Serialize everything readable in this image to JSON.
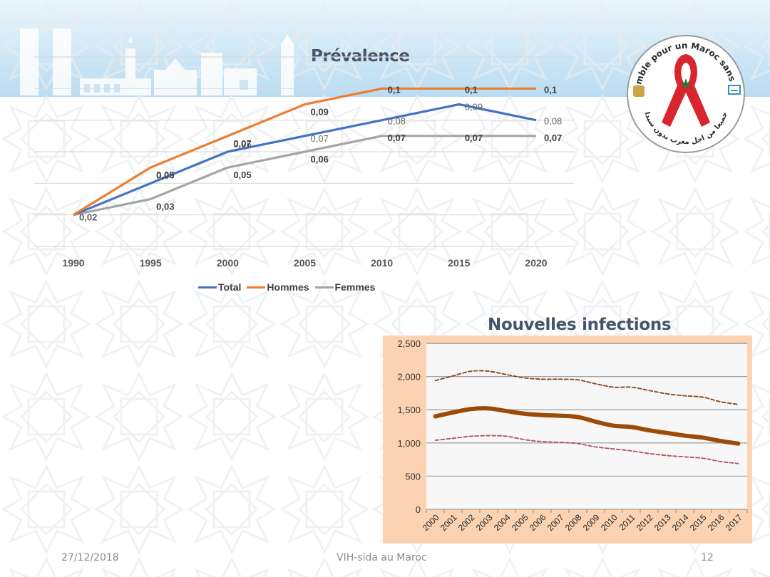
{
  "slide": {
    "footer": {
      "date": "27/12/2018",
      "title": "VIH-sida au Maroc",
      "page": "12"
    },
    "logo": {
      "top_text": "Ensemble pour un Maroc sans SIDA",
      "bottom_text": "جميعا من اجل مغرب بدون سيدا"
    }
  },
  "colors": {
    "total": "#4472c4",
    "hommes": "#ed7d31",
    "femmes": "#a5a5a5",
    "ni_central": "#9c4a06",
    "ni_upper": "#8b4513",
    "ni_lower": "#b5505a",
    "ni_frame": "#fbd3b3",
    "title": "#44546a"
  },
  "chart_data": [
    {
      "type": "line",
      "title": "Prévalence",
      "xlabel": "",
      "ylabel": "",
      "categories": [
        "1990",
        "1995",
        "2000",
        "2005",
        "2010",
        "2015",
        "2020"
      ],
      "ylim": [
        0,
        0.12
      ],
      "grid": true,
      "legend": "bottom",
      "legend_entries": [
        "Total",
        "Hommes",
        "Femmes"
      ],
      "series": [
        {
          "name": "Total",
          "values": [
            0.02,
            0.04,
            0.06,
            0.07,
            0.08,
            0.09,
            0.08
          ],
          "labels": [
            "0,02",
            "0,04",
            "0,06",
            "0,07",
            "0,08",
            "0,09",
            "0,08"
          ]
        },
        {
          "name": "Hommes",
          "values": [
            0.02,
            0.05,
            0.07,
            0.09,
            0.1,
            0.1,
            0.1
          ],
          "labels": [
            "",
            "0,05",
            "0,07",
            "0,09",
            "0,1",
            "0,1",
            "0,1"
          ]
        },
        {
          "name": "Femmes",
          "values": [
            0.02,
            0.03,
            0.05,
            0.06,
            0.07,
            0.07,
            0.07
          ],
          "labels": [
            "",
            "0,03",
            "0,05",
            "0,06",
            "0,07",
            "0,07",
            "0,07"
          ]
        }
      ]
    },
    {
      "type": "line",
      "title": "Nouvelles infections",
      "xlabel": "",
      "ylabel": "",
      "categories": [
        "2000",
        "2001",
        "2002",
        "2003",
        "2004",
        "2005",
        "2006",
        "2007",
        "2008",
        "2009",
        "2010",
        "2011",
        "2012",
        "2013",
        "2014",
        "2015",
        "2016",
        "2017"
      ],
      "ylim": [
        0,
        2500
      ],
      "yticks": [
        0,
        500,
        1000,
        1500,
        2000,
        2500
      ],
      "ytick_labels": [
        "0",
        "500",
        "1,000",
        "1,500",
        "2,000",
        "2,500"
      ],
      "grid": true,
      "legend": "none",
      "series": [
        {
          "name": "Estimate",
          "style": "solid",
          "values": [
            1400,
            1460,
            1510,
            1520,
            1480,
            1440,
            1420,
            1410,
            1390,
            1320,
            1260,
            1240,
            1190,
            1150,
            1110,
            1080,
            1030,
            990
          ]
        },
        {
          "name": "Upper bound",
          "style": "dashed",
          "values": [
            1940,
            2010,
            2080,
            2080,
            2030,
            1980,
            1960,
            1960,
            1950,
            1890,
            1840,
            1840,
            1790,
            1740,
            1710,
            1690,
            1620,
            1580
          ]
        },
        {
          "name": "Lower bound",
          "style": "dashed",
          "values": [
            1040,
            1070,
            1100,
            1110,
            1100,
            1050,
            1020,
            1010,
            990,
            940,
            910,
            880,
            840,
            810,
            790,
            770,
            720,
            690
          ]
        }
      ]
    }
  ]
}
